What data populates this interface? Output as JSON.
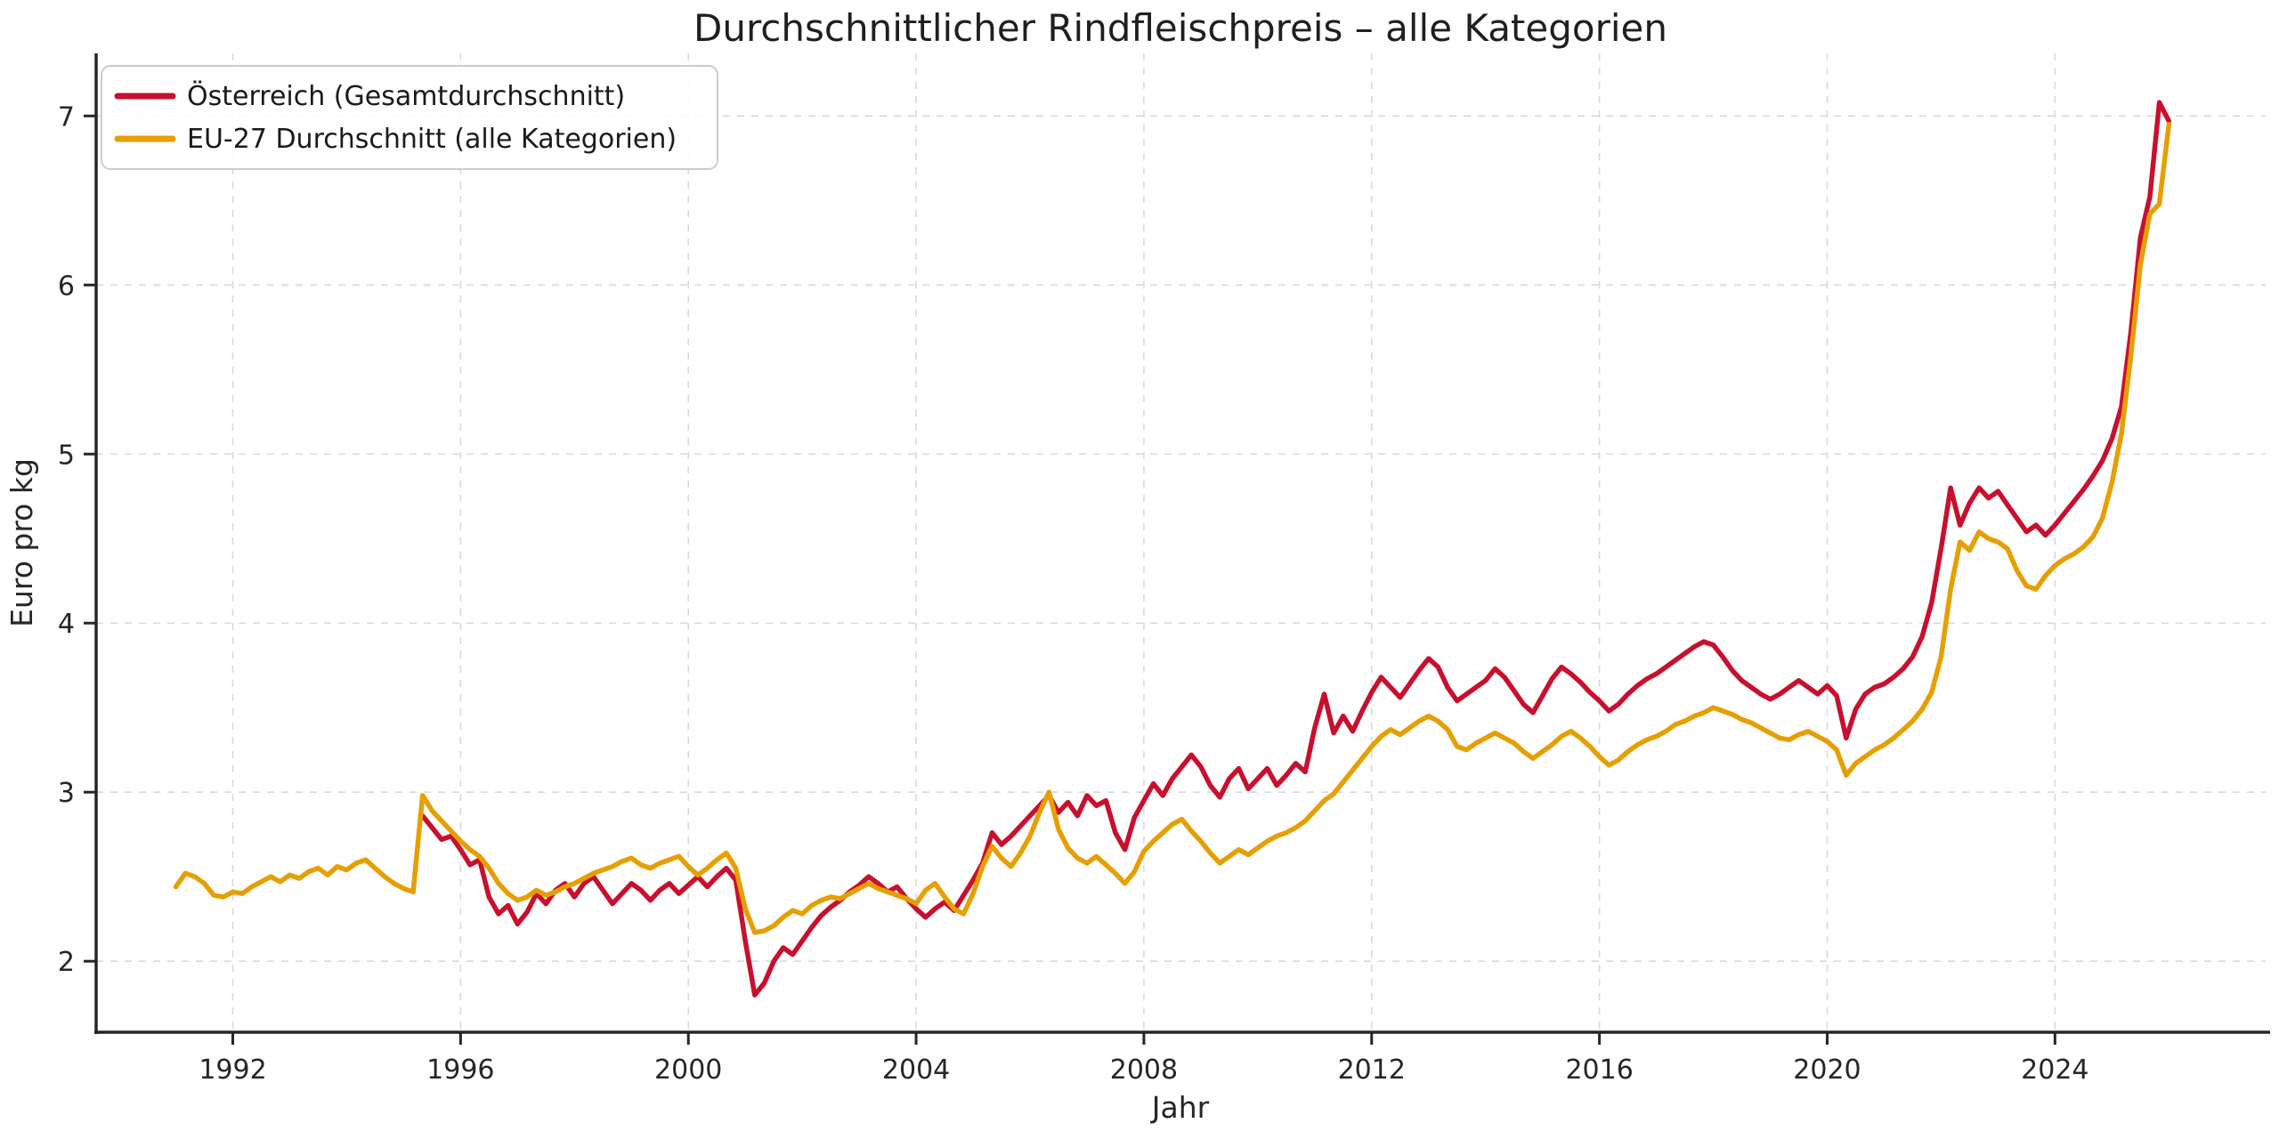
{
  "figure": {
    "background_color": "#ffffff",
    "spine_color": "#262626",
    "grid_color": "#d9d9d9",
    "tick_label_color": "#262626"
  },
  "chart_data": {
    "type": "line",
    "title": "Durchschnittlicher Rindfleischpreis – alle Kategorien",
    "xlabel": "Jahr",
    "ylabel": "Euro pro kg",
    "xlim": [
      1989.6,
      2027.7
    ],
    "ylim": [
      1.58,
      7.37
    ],
    "x_ticks": [
      1992,
      1996,
      2000,
      2004,
      2008,
      2012,
      2016,
      2020,
      2024
    ],
    "y_ticks": [
      2,
      3,
      4,
      5,
      6,
      7
    ],
    "grid": true,
    "grid_style": "dashed",
    "legend_position": "upper left",
    "series": [
      {
        "name": "Österreich (Gesamtdurchschnitt)",
        "color": "#C8102E",
        "start_year": 1995.3333,
        "step_years": 0.166667,
        "values": [
          2.86,
          2.79,
          2.72,
          2.74,
          2.66,
          2.57,
          2.6,
          2.38,
          2.28,
          2.33,
          2.22,
          2.29,
          2.4,
          2.34,
          2.42,
          2.46,
          2.38,
          2.46,
          2.5,
          2.42,
          2.34,
          2.4,
          2.46,
          2.42,
          2.36,
          2.42,
          2.46,
          2.4,
          2.45,
          2.5,
          2.44,
          2.5,
          2.55,
          2.48,
          2.12,
          1.8,
          1.87,
          2.0,
          2.08,
          2.04,
          2.12,
          2.2,
          2.27,
          2.32,
          2.36,
          2.41,
          2.45,
          2.5,
          2.46,
          2.41,
          2.44,
          2.37,
          2.31,
          2.26,
          2.31,
          2.35,
          2.3,
          2.39,
          2.48,
          2.58,
          2.76,
          2.69,
          2.74,
          2.8,
          2.86,
          2.92,
          2.98,
          2.88,
          2.94,
          2.86,
          2.98,
          2.92,
          2.95,
          2.76,
          2.66,
          2.85,
          2.95,
          3.05,
          2.98,
          3.08,
          3.15,
          3.22,
          3.15,
          3.04,
          2.97,
          3.08,
          3.14,
          3.02,
          3.08,
          3.14,
          3.04,
          3.1,
          3.17,
          3.12,
          3.38,
          3.58,
          3.35,
          3.45,
          3.36,
          3.48,
          3.59,
          3.68,
          3.62,
          3.56,
          3.64,
          3.72,
          3.79,
          3.74,
          3.62,
          3.54,
          3.58,
          3.62,
          3.66,
          3.73,
          3.68,
          3.6,
          3.52,
          3.47,
          3.57,
          3.67,
          3.74,
          3.7,
          3.65,
          3.59,
          3.54,
          3.48,
          3.52,
          3.58,
          3.63,
          3.67,
          3.7,
          3.74,
          3.78,
          3.82,
          3.86,
          3.89,
          3.87,
          3.8,
          3.72,
          3.66,
          3.62,
          3.58,
          3.55,
          3.58,
          3.62,
          3.66,
          3.62,
          3.58,
          3.63,
          3.57,
          3.32,
          3.49,
          3.58,
          3.62,
          3.64,
          3.68,
          3.73,
          3.8,
          3.92,
          4.12,
          4.44,
          4.8,
          4.58,
          4.71,
          4.8,
          4.74,
          4.78,
          4.7,
          4.62,
          4.54,
          4.58,
          4.52,
          4.58,
          4.65,
          4.72,
          4.79,
          4.87,
          4.96,
          5.09,
          5.28,
          5.72,
          6.28,
          6.52,
          7.08,
          6.97
        ]
      },
      {
        "name": "EU-27 Durchschnitt (alle Kategorien)",
        "color": "#E69F00",
        "start_year": 1991.0,
        "step_years": 0.166667,
        "values": [
          2.44,
          2.52,
          2.5,
          2.46,
          2.39,
          2.38,
          2.41,
          2.4,
          2.44,
          2.47,
          2.5,
          2.47,
          2.51,
          2.49,
          2.53,
          2.55,
          2.51,
          2.56,
          2.54,
          2.58,
          2.6,
          2.55,
          2.5,
          2.46,
          2.43,
          2.41,
          2.98,
          2.89,
          2.83,
          2.77,
          2.71,
          2.66,
          2.62,
          2.55,
          2.46,
          2.4,
          2.36,
          2.38,
          2.42,
          2.39,
          2.41,
          2.44,
          2.46,
          2.49,
          2.52,
          2.54,
          2.56,
          2.59,
          2.61,
          2.57,
          2.55,
          2.58,
          2.6,
          2.62,
          2.56,
          2.51,
          2.55,
          2.6,
          2.64,
          2.55,
          2.31,
          2.17,
          2.18,
          2.21,
          2.26,
          2.3,
          2.28,
          2.33,
          2.36,
          2.38,
          2.37,
          2.4,
          2.43,
          2.46,
          2.43,
          2.41,
          2.39,
          2.37,
          2.34,
          2.42,
          2.46,
          2.38,
          2.31,
          2.28,
          2.4,
          2.56,
          2.68,
          2.61,
          2.56,
          2.64,
          2.74,
          2.88,
          3.0,
          2.78,
          2.67,
          2.61,
          2.58,
          2.62,
          2.57,
          2.52,
          2.46,
          2.53,
          2.65,
          2.71,
          2.76,
          2.81,
          2.84,
          2.77,
          2.71,
          2.64,
          2.58,
          2.62,
          2.66,
          2.63,
          2.67,
          2.71,
          2.74,
          2.76,
          2.79,
          2.83,
          2.89,
          2.95,
          2.99,
          3.06,
          3.13,
          3.2,
          3.27,
          3.33,
          3.37,
          3.34,
          3.38,
          3.42,
          3.45,
          3.42,
          3.37,
          3.27,
          3.25,
          3.29,
          3.32,
          3.35,
          3.32,
          3.29,
          3.24,
          3.2,
          3.24,
          3.28,
          3.33,
          3.36,
          3.32,
          3.27,
          3.21,
          3.16,
          3.19,
          3.24,
          3.28,
          3.31,
          3.33,
          3.36,
          3.4,
          3.42,
          3.45,
          3.47,
          3.5,
          3.48,
          3.46,
          3.43,
          3.41,
          3.38,
          3.35,
          3.32,
          3.31,
          3.34,
          3.36,
          3.33,
          3.3,
          3.25,
          3.1,
          3.17,
          3.21,
          3.25,
          3.28,
          3.32,
          3.37,
          3.42,
          3.49,
          3.59,
          3.8,
          4.2,
          4.48,
          4.43,
          4.54,
          4.5,
          4.48,
          4.44,
          4.31,
          4.22,
          4.2,
          4.28,
          4.34,
          4.38,
          4.41,
          4.45,
          4.51,
          4.62,
          4.83,
          5.12,
          5.58,
          6.12,
          6.42,
          6.48,
          6.95
        ]
      }
    ]
  }
}
